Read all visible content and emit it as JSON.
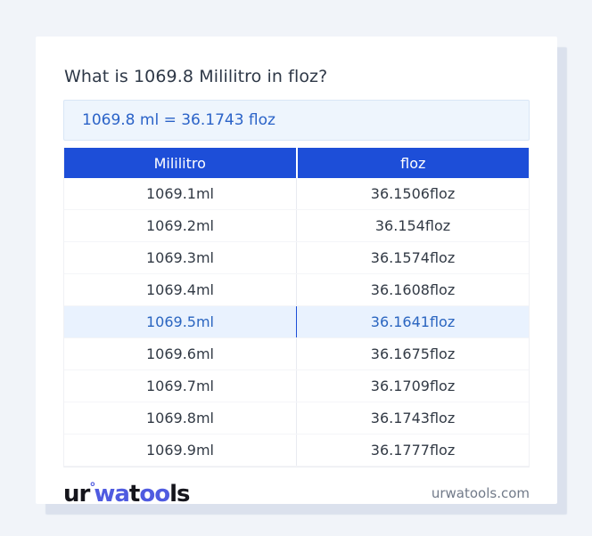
{
  "colors": {
    "page_background": "#f1f4f9",
    "card_background": "#ffffff",
    "accent_blue": "#1d4ed8",
    "result_text_blue": "#2b63c8",
    "result_box_bg": "#eef5fd",
    "highlight_row_bg": "#e9f2fe",
    "highlight_text_blue": "#2a65c0",
    "logo_blue": "#4f5be0",
    "title_text": "#2e3847",
    "body_text": "#323a45",
    "muted_text": "#717a89"
  },
  "header": {
    "title": "What is 1069.8 Mililitro in floz?",
    "result": "1069.8 ml = 36.1743 floz"
  },
  "table": {
    "columns": [
      "Mililitro",
      "floz"
    ],
    "highlighted_row_index": 4,
    "rows": [
      {
        "ml": "1069.1ml",
        "floz": "36.1506floz"
      },
      {
        "ml": "1069.2ml",
        "floz": "36.154floz"
      },
      {
        "ml": "1069.3ml",
        "floz": "36.1574floz"
      },
      {
        "ml": "1069.4ml",
        "floz": "36.1608floz"
      },
      {
        "ml": "1069.5ml",
        "floz": "36.1641floz"
      },
      {
        "ml": "1069.6ml",
        "floz": "36.1675floz"
      },
      {
        "ml": "1069.7ml",
        "floz": "36.1709floz"
      },
      {
        "ml": "1069.8ml",
        "floz": "36.1743floz"
      },
      {
        "ml": "1069.9ml",
        "floz": "36.1777floz"
      }
    ]
  },
  "footer": {
    "logo": {
      "part1": "ur",
      "degree": "°",
      "part2": "wa",
      "part3": "t",
      "part4": "oo",
      "part5": "ls"
    },
    "site": "urwatools.com"
  }
}
